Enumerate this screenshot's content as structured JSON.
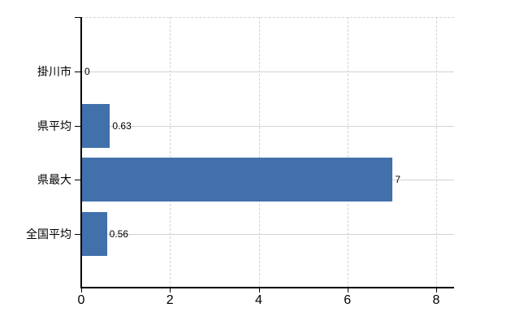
{
  "chart_data": {
    "type": "bar",
    "orientation": "horizontal",
    "title": "",
    "xlabel": "",
    "ylabel": "",
    "categories": [
      "掛川市",
      "県平均",
      "県最大",
      "全国平均"
    ],
    "values": [
      0,
      0.63,
      7,
      0.56
    ],
    "value_labels": [
      "0",
      "0.63",
      "7",
      "0.56"
    ],
    "x_axis": {
      "ticks": [
        0,
        2,
        4,
        6,
        8
      ],
      "tick_labels": [
        "0",
        "2",
        "4",
        "6",
        "8"
      ],
      "range": [
        0,
        8.4
      ]
    },
    "grid": {
      "horizontal_style": "solid",
      "vertical_style": "dashed",
      "top_border_style": "dashed"
    },
    "legend": false,
    "colors": {
      "bar": "#4170ab",
      "grid": "#d3d3d3",
      "axis": "#000000",
      "text": "#000000",
      "background": "#ffffff"
    }
  }
}
